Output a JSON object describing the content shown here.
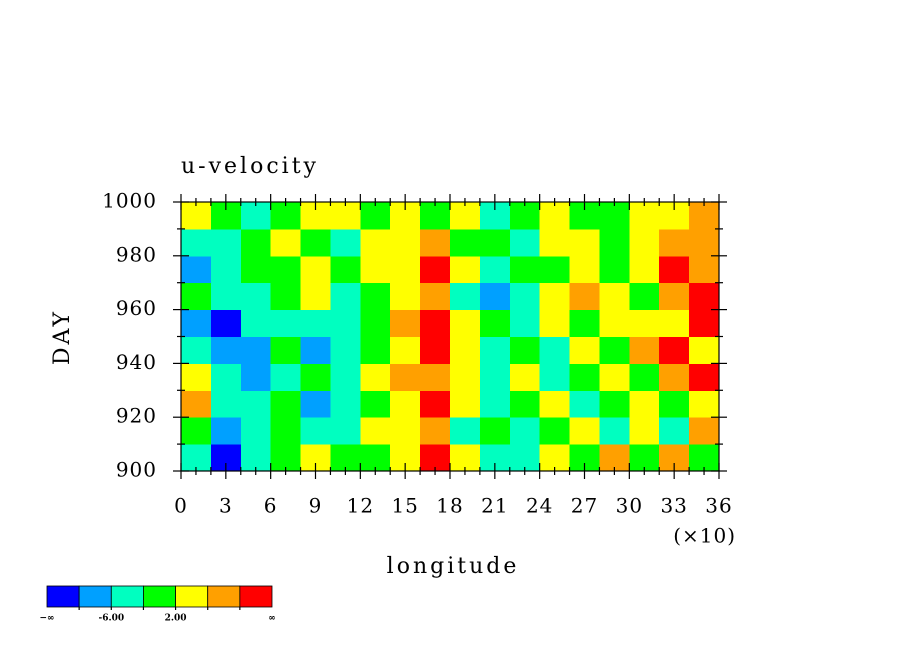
{
  "chart_data": {
    "type": "heatmap",
    "title": "u-velocity",
    "xlabel": "longitude",
    "ylabel": "DAY",
    "x_multiplier_label": "(×10)",
    "x": [
      10,
      30,
      50,
      70,
      90,
      110,
      130,
      150,
      170,
      190,
      210,
      230,
      250,
      270,
      290,
      310,
      330,
      350
    ],
    "y": [
      905,
      915,
      925,
      935,
      945,
      955,
      965,
      975,
      985,
      995
    ],
    "z": [
      [
        -4,
        -11,
        -6,
        -2,
        3,
        -1,
        1,
        4,
        12,
        5,
        -5,
        -3,
        2,
        0,
        6,
        -2,
        7,
        -1
      ],
      [
        -1,
        -9,
        -5,
        1,
        -3,
        -6,
        2,
        5,
        7,
        -3,
        1,
        -4,
        -1,
        3,
        -5,
        2,
        -3,
        8
      ],
      [
        8,
        -6,
        -4,
        -2,
        -7,
        -3,
        -1,
        3,
        11,
        2,
        -5,
        -2,
        4,
        -4,
        0,
        5,
        -2,
        3
      ],
      [
        5,
        -4,
        -9,
        -6,
        1,
        -3,
        3,
        6,
        8,
        4,
        -6,
        2,
        -3,
        1,
        4,
        -1,
        6,
        11
      ],
      [
        -3,
        -9,
        -7,
        -2,
        -8,
        -5,
        -2,
        4,
        11,
        3,
        -4,
        -1,
        -5,
        2,
        -2,
        7,
        12,
        5
      ],
      [
        -7,
        -11,
        -5,
        -3,
        -6,
        -4,
        1,
        7,
        12,
        5,
        -2,
        -6,
        3,
        -1,
        5,
        2,
        4,
        11
      ],
      [
        -2,
        -6,
        -4,
        -1,
        2,
        -5,
        0,
        4,
        6,
        -3,
        -9,
        -6,
        2,
        6,
        3,
        0,
        8,
        12
      ],
      [
        -8,
        -4,
        -2,
        0,
        3,
        -1,
        2,
        5,
        11,
        4,
        -3,
        0,
        1,
        5,
        -1,
        4,
        11,
        6
      ],
      [
        -5,
        -3,
        1,
        4,
        0,
        -4,
        3,
        2,
        6,
        -2,
        1,
        -3,
        2,
        4,
        0,
        3,
        7,
        9
      ],
      [
        3,
        1,
        -3,
        1,
        4,
        2,
        -1,
        3,
        0,
        2,
        -4,
        1,
        3,
        -2,
        0,
        2,
        5,
        8
      ]
    ],
    "xlim": [
      0,
      360
    ],
    "ylim": [
      900,
      1000
    ],
    "xticks": [
      0,
      {
        "value": 30,
        "label": "3"
      },
      {
        "value": 60,
        "label": "6"
      },
      {
        "value": 90,
        "label": "9"
      },
      {
        "value": 120,
        "label": "12"
      },
      {
        "value": 150,
        "label": "15"
      },
      {
        "value": 180,
        "label": "18"
      },
      {
        "value": 210,
        "label": "21"
      },
      {
        "value": 240,
        "label": "24"
      },
      {
        "value": 270,
        "label": "27"
      },
      {
        "value": 300,
        "label": "30"
      },
      {
        "value": 330,
        "label": "33"
      },
      {
        "value": 360,
        "label": "36"
      }
    ],
    "xminorticks": [
      10,
      20,
      40,
      50,
      70,
      80,
      100,
      110,
      130,
      140,
      160,
      170,
      190,
      200,
      220,
      230,
      250,
      260,
      280,
      290,
      310,
      320,
      340,
      350
    ],
    "yticks": [
      900,
      920,
      940,
      960,
      980,
      1000
    ],
    "yminorticks": [
      910,
      930,
      950,
      970,
      990
    ],
    "colors": [
      "#0000ff",
      "#00a0ff",
      "#00ffc0",
      "#00ff00",
      "#ffff00",
      "#ffa000",
      "#ff0000"
    ],
    "levels": [
      -10,
      -6,
      -2,
      2,
      6,
      10
    ],
    "level_labels": [
      {
        "value": -6,
        "label": "-6.00"
      },
      {
        "value": 2,
        "label": "2.00"
      }
    ],
    "min_label": "−∞",
    "max_label": "∞"
  }
}
